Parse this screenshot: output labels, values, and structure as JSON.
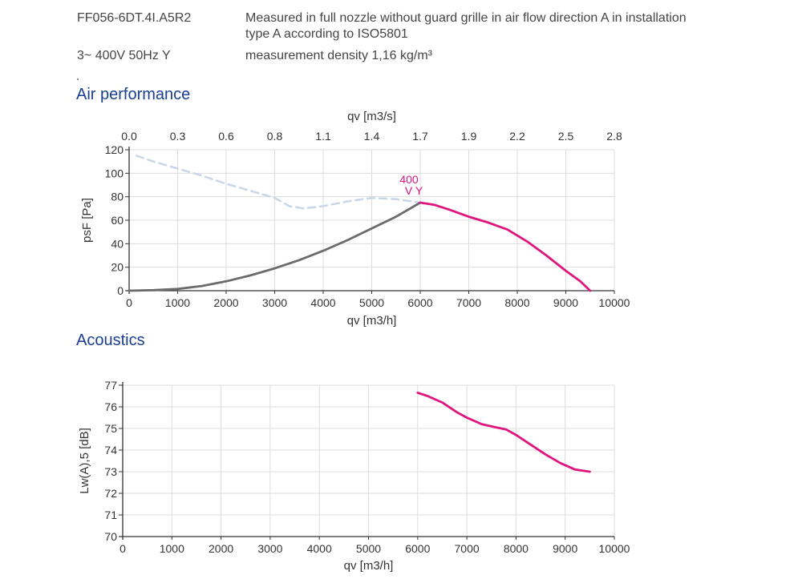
{
  "header": {
    "model": "FF056-6DT.4I.A5R2",
    "supply": "3~ 400V 50Hz Y",
    "description_line1": "Measured in full nozzle without guard grille in air flow direction A in installation",
    "description_line2": "type A according to ISO5801",
    "density": "measurement density 1,16 kg/m³"
  },
  "sections": {
    "air": "Air performance",
    "acoustics": "Acoustics"
  },
  "colors": {
    "curve": "#e0147e",
    "system": "#6b6b6b",
    "dashed": "#c8d6e8",
    "grid": "#dddddd",
    "title": "#1a3f8f"
  },
  "chart_data": [
    {
      "type": "line",
      "title": "Air performance",
      "xlabel": "qv [m3/h]",
      "x2label": "qv [m3/s]",
      "ylabel": "psF [Pa]",
      "xlim": [
        0,
        10000
      ],
      "ylim": [
        0,
        120
      ],
      "xticks": [
        "0",
        "1000",
        "2000",
        "3000",
        "4000",
        "5000",
        "6000",
        "7000",
        "8000",
        "9000",
        "10000"
      ],
      "x2ticks": [
        "0.0",
        "0.3",
        "0.6",
        "0.8",
        "1.1",
        "1.4",
        "1.7",
        "1.9",
        "2.2",
        "2.5",
        "2.8"
      ],
      "yticks": [
        "0",
        "20",
        "40",
        "60",
        "80",
        "100",
        "120"
      ],
      "grid": true,
      "annotation": {
        "line1": "400",
        "line2": "V Y",
        "x": 6000,
        "y": 75
      },
      "series": [
        {
          "style": "dashed",
          "color": "#c8d6e8",
          "x": [
            150,
            500,
            1000,
            1500,
            2000,
            2500,
            3000,
            3300,
            3600,
            4000,
            4500,
            5000,
            5500,
            6000
          ],
          "y": [
            115,
            110,
            104,
            98,
            91,
            85,
            79,
            72,
            70,
            72,
            76,
            79,
            78,
            75
          ]
        },
        {
          "style": "solid",
          "color": "#6b6b6b",
          "x": [
            0,
            500,
            1000,
            1500,
            2000,
            2500,
            3000,
            3500,
            4000,
            4500,
            5000,
            5500,
            6000
          ],
          "y": [
            0,
            0.5,
            1.5,
            4,
            8,
            13,
            19,
            26,
            34,
            43,
            53,
            63,
            75
          ]
        },
        {
          "style": "solid",
          "color": "#e0147e",
          "x": [
            6000,
            6300,
            6600,
            7000,
            7400,
            7800,
            8200,
            8600,
            9000,
            9300,
            9500
          ],
          "y": [
            75,
            73,
            69,
            63,
            58,
            52,
            42,
            30,
            17,
            8,
            0
          ]
        }
      ]
    },
    {
      "type": "line",
      "title": "Acoustics",
      "xlabel": "qv [m3/h]",
      "ylabel": "Lw(A),5 [dB]",
      "xlim": [
        0,
        10000
      ],
      "ylim": [
        70,
        77
      ],
      "xticks": [
        "0",
        "1000",
        "2000",
        "3000",
        "4000",
        "5000",
        "6000",
        "7000",
        "8000",
        "9000",
        "10000"
      ],
      "yticks": [
        "70",
        "71",
        "72",
        "73",
        "74",
        "75",
        "76",
        "77"
      ],
      "grid": true,
      "series": [
        {
          "style": "solid",
          "color": "#e0147e",
          "x": [
            6000,
            6200,
            6500,
            6800,
            7000,
            7300,
            7600,
            7800,
            8000,
            8300,
            8600,
            8900,
            9200,
            9500
          ],
          "y": [
            76.65,
            76.5,
            76.2,
            75.75,
            75.5,
            75.2,
            75.05,
            74.95,
            74.7,
            74.25,
            73.8,
            73.4,
            73.1,
            73.0
          ]
        }
      ]
    }
  ]
}
